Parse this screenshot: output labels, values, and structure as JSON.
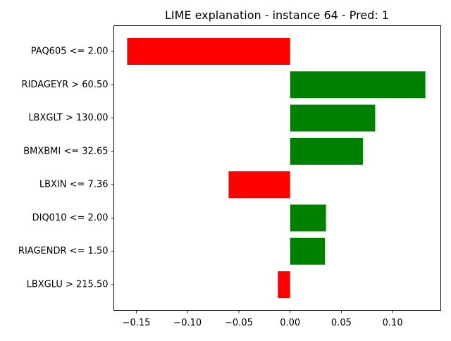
{
  "chart_data": {
    "type": "bar",
    "orientation": "horizontal",
    "title": "LIME explanation - instance 64 - Pred: 1",
    "xlabel": "",
    "ylabel": "",
    "categories": [
      "PAQ605 <= 2.00",
      "RIDAGEYR > 60.50",
      "LBXGLT > 130.00",
      "BMXBMI <= 32.65",
      "LBXIN <= 7.36",
      "DIQ010 <= 2.00",
      "RIAGENDR <= 1.50",
      "LBXGLU > 215.50"
    ],
    "values": [
      -0.159,
      0.132,
      0.083,
      0.071,
      -0.06,
      0.035,
      0.034,
      -0.012
    ],
    "xlim": [
      -0.172,
      0.147
    ],
    "xticks": [
      -0.15,
      -0.1,
      -0.05,
      0.0,
      0.05,
      0.1
    ],
    "xtick_labels": [
      "−0.15",
      "−0.10",
      "−0.05",
      "0.00",
      "0.05",
      "0.10"
    ],
    "colors": {
      "positive": "#008000",
      "negative": "#ff0000"
    },
    "grid": false,
    "legend": "none"
  }
}
